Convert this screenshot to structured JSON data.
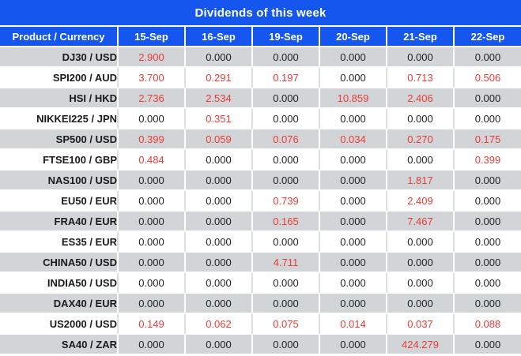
{
  "title": "Dividends of this week",
  "colors": {
    "header_blue": "#1557ee",
    "row_gray": "#d2d5d7",
    "value_red": "#ef3a36",
    "value_black": "#1f2024",
    "separator_white": "#ffffff",
    "white_row_divider": "#dcdee0"
  },
  "table": {
    "header": [
      "Product / Currency",
      "15-Sep",
      "16-Sep",
      "19-Sep",
      "20-Sep",
      "21-Sep",
      "22-Sep"
    ],
    "rows": [
      {
        "product": "DJ30 / USD",
        "values": [
          "2.900",
          "0.000",
          "0.000",
          "0.000",
          "0.000",
          "0.000"
        ]
      },
      {
        "product": "SPI200 / AUD",
        "values": [
          "3.700",
          "0.291",
          "0.197",
          "0.000",
          "0.713",
          "0.506"
        ]
      },
      {
        "product": "HSI / HKD",
        "values": [
          "2.736",
          "2.534",
          "0.000",
          "10.859",
          "2.406",
          "0.000"
        ]
      },
      {
        "product": "NIKKEI225 / JPN",
        "values": [
          "0.000",
          "0.351",
          "0.000",
          "0.000",
          "0.000",
          "0.000"
        ]
      },
      {
        "product": "SP500 / USD",
        "values": [
          "0.399",
          "0.059",
          "0.076",
          "0.034",
          "0.270",
          "0.175"
        ]
      },
      {
        "product": "FTSE100 / GBP",
        "values": [
          "0.484",
          "0.000",
          "0.000",
          "0.000",
          "0.000",
          "0.399"
        ]
      },
      {
        "product": "NAS100 / USD",
        "values": [
          "0.000",
          "0.000",
          "0.000",
          "0.000",
          "1.817",
          "0.000"
        ]
      },
      {
        "product": "EU50 / EUR",
        "values": [
          "0.000",
          "0.000",
          "0.739",
          "0.000",
          "2.409",
          "0.000"
        ]
      },
      {
        "product": "FRA40 / EUR",
        "values": [
          "0.000",
          "0.000",
          "0.165",
          "0.000",
          "7.467",
          "0.000"
        ]
      },
      {
        "product": "ES35 / EUR",
        "values": [
          "0.000",
          "0.000",
          "0.000",
          "0.000",
          "0.000",
          "0.000"
        ]
      },
      {
        "product": "CHINA50 / USD",
        "values": [
          "0.000",
          "0.000",
          "4.711",
          "0.000",
          "0.000",
          "0.000"
        ]
      },
      {
        "product": "INDIA50 / USD",
        "values": [
          "0.000",
          "0.000",
          "0.000",
          "0.000",
          "0.000",
          "0.000"
        ]
      },
      {
        "product": "DAX40 / EUR",
        "values": [
          "0.000",
          "0.000",
          "0.000",
          "0.000",
          "0.000",
          "0.000"
        ]
      },
      {
        "product": "US2000 / USD",
        "values": [
          "0.149",
          "0.062",
          "0.075",
          "0.014",
          "0.037",
          "0.088"
        ]
      },
      {
        "product": "SA40 / ZAR",
        "values": [
          "0.000",
          "0.000",
          "0.000",
          "0.000",
          "424.279",
          "0.000"
        ]
      }
    ]
  }
}
